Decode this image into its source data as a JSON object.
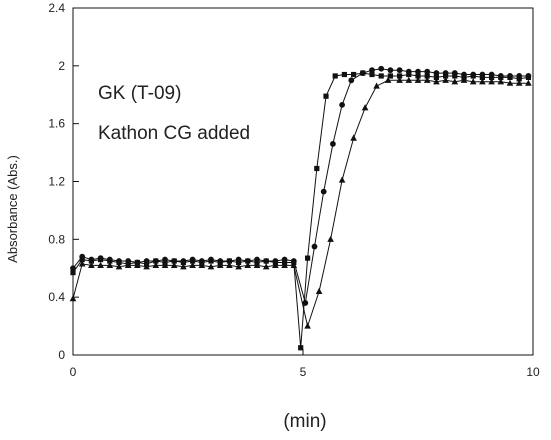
{
  "chart_data": {
    "type": "line",
    "xlabel": "(min)",
    "ylabel": "Absorbance (Abs.)",
    "xlim": [
      0,
      10
    ],
    "ylim": [
      0,
      2.4
    ],
    "x_ticks": [
      "0",
      "5",
      "10"
    ],
    "y_ticks": [
      "0",
      "0.4",
      "0.8",
      "1.2",
      "1.6",
      "2",
      "2.4"
    ],
    "annotations": [
      "GK (T-09)",
      "Kathon CG added"
    ],
    "grid": false,
    "series": [
      {
        "marker": "square",
        "x": [
          0,
          0.2,
          0.4,
          0.6,
          0.8,
          1.0,
          1.2,
          1.4,
          1.6,
          1.8,
          2.0,
          2.2,
          2.4,
          2.6,
          2.8,
          3.0,
          3.2,
          3.4,
          3.6,
          3.8,
          4.0,
          4.2,
          4.4,
          4.6,
          4.8,
          4.95,
          5.1,
          5.3,
          5.5,
          5.7,
          5.9,
          6.1,
          6.3,
          6.5,
          6.7,
          6.9,
          7.1,
          7.3,
          7.5,
          7.7,
          7.9,
          8.1,
          8.3,
          8.5,
          8.7,
          8.9,
          9.1,
          9.3,
          9.5,
          9.7,
          9.9
        ],
        "y": [
          0.57,
          0.66,
          0.65,
          0.66,
          0.65,
          0.64,
          0.63,
          0.64,
          0.63,
          0.65,
          0.64,
          0.65,
          0.64,
          0.65,
          0.64,
          0.65,
          0.64,
          0.65,
          0.64,
          0.65,
          0.64,
          0.65,
          0.64,
          0.64,
          0.64,
          0.05,
          0.67,
          1.29,
          1.79,
          1.93,
          1.94,
          1.94,
          1.95,
          1.94,
          1.93,
          1.93,
          1.93,
          1.94,
          1.93,
          1.93,
          1.92,
          1.93,
          1.93,
          1.92,
          1.93,
          1.92,
          1.92,
          1.92,
          1.92,
          1.91,
          1.92
        ]
      },
      {
        "marker": "circle",
        "x": [
          0,
          0.2,
          0.4,
          0.6,
          0.8,
          1.0,
          1.2,
          1.4,
          1.6,
          1.8,
          2.0,
          2.2,
          2.4,
          2.6,
          2.8,
          3.0,
          3.2,
          3.4,
          3.6,
          3.8,
          4.0,
          4.2,
          4.4,
          4.6,
          4.8,
          5.05,
          5.25,
          5.45,
          5.65,
          5.85,
          6.05,
          6.3,
          6.5,
          6.7,
          6.9,
          7.1,
          7.3,
          7.5,
          7.7,
          7.9,
          8.1,
          8.3,
          8.5,
          8.7,
          8.9,
          9.1,
          9.3,
          9.5,
          9.7,
          9.9
        ],
        "y": [
          0.6,
          0.68,
          0.66,
          0.67,
          0.66,
          0.65,
          0.65,
          0.64,
          0.65,
          0.65,
          0.66,
          0.65,
          0.65,
          0.66,
          0.65,
          0.66,
          0.65,
          0.65,
          0.66,
          0.65,
          0.66,
          0.65,
          0.65,
          0.66,
          0.65,
          0.36,
          0.75,
          1.13,
          1.46,
          1.73,
          1.9,
          1.95,
          1.97,
          1.98,
          1.97,
          1.97,
          1.96,
          1.96,
          1.96,
          1.95,
          1.95,
          1.95,
          1.94,
          1.94,
          1.94,
          1.94,
          1.93,
          1.93,
          1.93,
          1.93
        ]
      },
      {
        "marker": "triangle",
        "x": [
          0,
          0.2,
          0.4,
          0.6,
          0.8,
          1.0,
          1.2,
          1.4,
          1.6,
          1.8,
          2.0,
          2.2,
          2.4,
          2.6,
          2.8,
          3.0,
          3.2,
          3.4,
          3.6,
          3.8,
          4.0,
          4.2,
          4.4,
          4.6,
          4.8,
          5.1,
          5.35,
          5.6,
          5.85,
          6.1,
          6.35,
          6.6,
          6.85,
          7.1,
          7.3,
          7.5,
          7.7,
          7.9,
          8.1,
          8.3,
          8.5,
          8.7,
          8.9,
          9.1,
          9.3,
          9.5,
          9.7,
          9.9
        ],
        "y": [
          0.39,
          0.63,
          0.62,
          0.62,
          0.62,
          0.61,
          0.62,
          0.62,
          0.61,
          0.62,
          0.62,
          0.62,
          0.61,
          0.62,
          0.62,
          0.61,
          0.62,
          0.62,
          0.61,
          0.62,
          0.62,
          0.61,
          0.62,
          0.62,
          0.62,
          0.2,
          0.44,
          0.8,
          1.21,
          1.5,
          1.71,
          1.86,
          1.9,
          1.9,
          1.9,
          1.9,
          1.9,
          1.89,
          1.9,
          1.89,
          1.9,
          1.89,
          1.89,
          1.89,
          1.89,
          1.88,
          1.88,
          1.88
        ]
      }
    ]
  }
}
